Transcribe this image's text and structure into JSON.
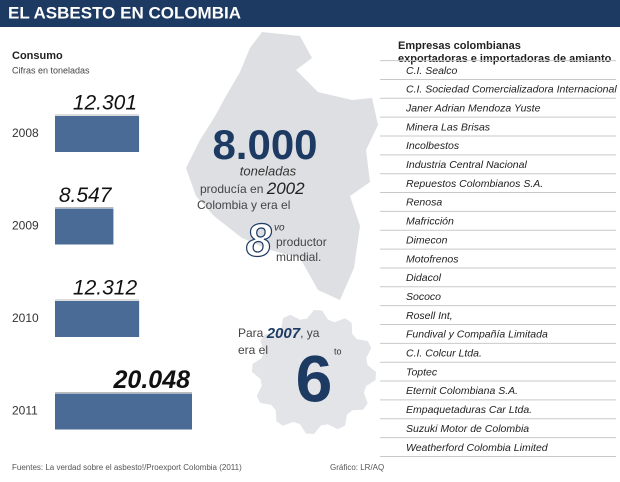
{
  "header": {
    "title": "EL ASBESTO EN COLOMBIA"
  },
  "chart_data": {
    "type": "bar",
    "orientation": "horizontal",
    "title": "Consumo",
    "subtitle": "Cifras en toneladas",
    "categories": [
      "2008",
      "2009",
      "2010",
      "2011"
    ],
    "values": [
      12301,
      8547,
      12312,
      20048
    ],
    "value_labels": [
      "12.301",
      "8.547",
      "12.312",
      "20.048"
    ],
    "color": "#4b6b97"
  },
  "highlight_2002": {
    "amount": "8.000",
    "unit": "toneladas",
    "text_before_year": "producía en",
    "year": "2002",
    "text_after_year": "Colombia y era el",
    "rank": "8",
    "rank_suffix": "vo",
    "rank_text_1": "productor",
    "rank_text_2": "mundial."
  },
  "highlight_2007": {
    "text_before_year": "Para",
    "year": "2007",
    "text_after_year": ", ya",
    "text_line_2": "era el",
    "rank": "6",
    "rank_suffix": "to"
  },
  "companies": {
    "title_lines": [
      "Empresas colombianas",
      "exportadoras e importadoras de amianto"
    ],
    "items": [
      "C.I. Sealco",
      "C.I. Sociedad Comercializadora Internacional",
      "Janer Adrian Mendoza Yuste",
      "Minera Las Brisas",
      "Incolbestos",
      "Industria Central Nacional",
      "Repuestos Colombianos S.A.",
      "Renosa",
      "Mafricción",
      "Dimecon",
      "Motofrenos",
      "Didacol",
      "Sococo",
      "Rosell Int,",
      "Fundival y Compañía Limitada",
      "C.I. Colcur Ltda.",
      "Toptec",
      "Eternit Colombiana S.A.",
      "Empaquetaduras Car Ltda.",
      "Suzuki Motor de Colombia",
      "Weatherford Colombia Limited"
    ]
  },
  "footer": {
    "source": "Fuentes: La verdad sobre el asbesto!/Proexport Colombia (2011)",
    "credit": "Gráfico: LR/AQ"
  }
}
